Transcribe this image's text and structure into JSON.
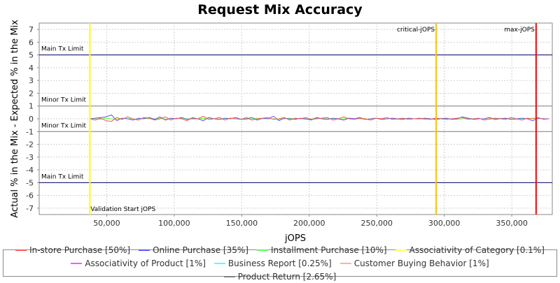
{
  "chart_data": {
    "type": "line",
    "title": "Request Mix Accuracy",
    "xlabel": "jOPS",
    "ylabel": "Actual % in the Mix - Expected % in the Mix",
    "xlim": [
      0,
      380000
    ],
    "ylim": [
      -7.5,
      7.5
    ],
    "x_ticks": [
      50000,
      100000,
      150000,
      200000,
      250000,
      300000,
      350000
    ],
    "x_tick_labels": [
      "50,000",
      "100,000",
      "150,000",
      "200,000",
      "250,000",
      "300,000",
      "350,000"
    ],
    "y_ticks": [
      -7,
      -6,
      -5,
      -4,
      -3,
      -2,
      -1,
      0,
      1,
      2,
      3,
      4,
      5,
      6,
      7
    ],
    "y_tick_labels": [
      "-7",
      "-6",
      "-5",
      "-4",
      "-3",
      "-2",
      "-1",
      "0",
      "1",
      "2",
      "3",
      "4",
      "5",
      "6",
      "7"
    ],
    "grid": true,
    "legend_position": "bottom",
    "horizontal_markers": [
      {
        "label": "Main Tx Limit",
        "value": 5,
        "color": "#000066"
      },
      {
        "label": "Minor Tx Limit",
        "value": 1,
        "color": "#808080"
      },
      {
        "label": "Minor Tx Limit",
        "value": -1,
        "color": "#808080"
      },
      {
        "label": "Main Tx Limit",
        "value": -5,
        "color": "#000066"
      }
    ],
    "vertical_markers": [
      {
        "label": "Validation Start jOPS",
        "value": 37500,
        "color": "#ffff00"
      },
      {
        "label": "critical-jOPS",
        "value": 294000,
        "color": "#ffc000"
      },
      {
        "label": "max-jOPS",
        "value": 368000,
        "color": "#ff0000"
      }
    ],
    "x": [
      37500,
      41500,
      45500,
      49500,
      53500,
      57500,
      61500,
      65500,
      69500,
      73500,
      77500,
      81500,
      85500,
      89500,
      93500,
      97500,
      101500,
      105500,
      109500,
      113500,
      117500,
      121500,
      125500,
      129500,
      133500,
      137500,
      141500,
      145500,
      149500,
      153500,
      157500,
      161500,
      165500,
      169500,
      173500,
      177500,
      181500,
      185500,
      189500,
      193500,
      197500,
      201500,
      205500,
      209500,
      213500,
      217500,
      221500,
      225500,
      229500,
      233500,
      237500,
      241500,
      245500,
      249500,
      253500,
      257500,
      261500,
      265500,
      269500,
      273500,
      277500,
      281500,
      285500,
      289500,
      293500,
      297500,
      301500,
      305500,
      309500,
      313500,
      317500,
      321500,
      325500,
      329500,
      333500,
      337500,
      341500,
      345500,
      349500,
      353500,
      357500,
      361500,
      365500,
      369500,
      373500,
      377500
    ],
    "series": [
      {
        "name": "In-store Purchase [50%]",
        "color": "#ff5555",
        "values": [
          0.0,
          -0.1,
          0.05,
          -0.15,
          -0.2,
          0.1,
          -0.05,
          0.15,
          0.0,
          -0.1,
          0.1,
          0.05,
          -0.1,
          0.0,
          0.15,
          -0.1,
          0.05,
          0.0,
          -0.15,
          0.1,
          0.0,
          0.2,
          -0.05,
          0.0,
          0.1,
          -0.1,
          0.05,
          0.0,
          -0.05,
          0.1,
          -0.1,
          0.0,
          0.05,
          0.1,
          -0.05,
          0.0,
          0.1,
          -0.1,
          0.05,
          0.0,
          0.1,
          -0.05,
          0.0,
          0.05,
          0.1,
          -0.1,
          0.0,
          0.15,
          0.0,
          -0.05,
          0.05,
          0.0,
          -0.1,
          0.05,
          0.0,
          0.1,
          -0.05,
          0.0,
          0.05,
          -0.05,
          0.0,
          0.05,
          0.0,
          -0.05,
          0.05,
          0.0,
          -0.05,
          0.0,
          0.05,
          0.1,
          -0.05,
          0.0,
          0.05,
          -0.1,
          0.0,
          0.05,
          0.0,
          -0.05,
          0.1,
          0.0,
          -0.1,
          0.05,
          0.0,
          0.1,
          -0.05,
          0.0
        ]
      },
      {
        "name": "Online Purchase [35%]",
        "color": "#5555ff",
        "values": [
          0.0,
          0.05,
          0.1,
          0.15,
          0.3,
          -0.15,
          0.05,
          0.0,
          -0.1,
          0.05,
          0.0,
          0.1,
          -0.05,
          0.15,
          -0.1,
          0.05,
          0.0,
          0.1,
          -0.05,
          0.05,
          0.0,
          -0.15,
          0.1,
          0.0,
          -0.05,
          0.05,
          0.0,
          0.1,
          -0.05,
          0.0,
          0.1,
          -0.1,
          0.05,
          0.0,
          0.2,
          -0.15,
          0.05,
          0.0,
          -0.05,
          0.05,
          0.0,
          -0.1,
          0.1,
          0.0,
          -0.05,
          0.05,
          0.0,
          -0.1,
          0.05,
          0.0,
          0.1,
          -0.05,
          0.0,
          0.05,
          -0.05,
          0.0,
          0.05,
          0.0,
          -0.05,
          0.05,
          0.0,
          0.0,
          0.05,
          0.0,
          -0.05,
          0.0,
          0.05,
          -0.05,
          0.0,
          0.15,
          0.05,
          -0.05,
          0.0,
          0.0,
          0.1,
          -0.05,
          0.0,
          0.05,
          -0.05,
          0.0,
          0.05,
          0.0,
          -0.15,
          0.05,
          0.0,
          0.0
        ]
      },
      {
        "name": "Installment Purchase [10%]",
        "color": "#55ff55",
        "values": [
          0.0,
          0.0,
          -0.05,
          0.05,
          0.0,
          -0.05,
          0.05,
          0.0,
          0.0,
          -0.05,
          0.05,
          0.0,
          0.0,
          0.05,
          -0.05,
          0.0,
          0.0,
          0.05,
          0.0,
          -0.05,
          0.0,
          0.05,
          0.0,
          0.0,
          -0.05,
          0.0,
          0.05,
          0.0,
          0.0,
          -0.05,
          0.0,
          0.05,
          0.0,
          0.0,
          0.0,
          -0.05,
          0.0,
          0.05,
          0.0,
          0.0,
          -0.05,
          0.0,
          0.05,
          0.0,
          0.0,
          0.0,
          -0.05,
          0.0,
          0.05,
          0.0,
          0.0,
          -0.05,
          0.0,
          0.05,
          0.0,
          0.0,
          0.0,
          -0.05,
          0.0,
          0.05,
          0.0,
          0.0,
          -0.05,
          0.0,
          0.0,
          0.05,
          0.0,
          0.0,
          -0.05,
          0.0,
          0.05,
          0.0,
          0.0,
          0.0,
          -0.05,
          0.0,
          0.05,
          0.0,
          0.0,
          -0.05,
          0.0,
          0.0,
          0.05,
          0.0,
          0.0,
          0.0
        ]
      },
      {
        "name": "Associativity of Category [0.1%]",
        "color": "#ffff55",
        "values": [
          0.0,
          0.0,
          0.0,
          0.0,
          0.0,
          0.0,
          0.0,
          0.0,
          0.0,
          0.0,
          0.0,
          0.0,
          0.0,
          0.0,
          0.0,
          0.0,
          0.0,
          0.0,
          0.0,
          0.0,
          0.0,
          0.0,
          0.0,
          0.0,
          0.0,
          0.0,
          0.0,
          0.0,
          0.0,
          0.0,
          0.0,
          0.0,
          0.0,
          0.0,
          0.0,
          0.0,
          0.0,
          0.0,
          0.0,
          0.0,
          0.0,
          0.0,
          0.0,
          0.0,
          0.0,
          0.0,
          0.0,
          0.0,
          0.0,
          0.0,
          0.0,
          0.0,
          0.0,
          0.0,
          0.0,
          0.0,
          0.0,
          0.0,
          0.0,
          0.0,
          0.0,
          0.0,
          0.0,
          0.0,
          0.0,
          0.0,
          0.0,
          0.0,
          0.0,
          0.0,
          0.0,
          0.0,
          0.0,
          0.0,
          0.0,
          0.0,
          0.0,
          0.0,
          0.0,
          0.0,
          0.0,
          0.0,
          0.0,
          0.0,
          0.0,
          0.0
        ]
      },
      {
        "name": "Associativity of Product [1%]",
        "color": "#ff55ff",
        "values": [
          0.0,
          0.0,
          0.0,
          0.0,
          0.0,
          0.0,
          0.0,
          0.0,
          0.0,
          0.0,
          0.0,
          0.0,
          0.0,
          0.0,
          0.0,
          0.0,
          0.0,
          0.0,
          0.0,
          0.0,
          0.0,
          0.0,
          0.0,
          0.0,
          0.0,
          0.0,
          0.0,
          0.0,
          0.0,
          0.0,
          0.0,
          0.0,
          0.0,
          0.0,
          0.0,
          0.0,
          0.0,
          0.0,
          0.0,
          0.0,
          0.0,
          0.0,
          0.0,
          0.0,
          0.0,
          0.0,
          0.0,
          0.0,
          0.0,
          0.0,
          0.0,
          0.0,
          0.0,
          0.0,
          0.0,
          0.0,
          0.0,
          0.0,
          0.0,
          0.0,
          0.0,
          0.0,
          0.0,
          0.0,
          0.0,
          0.0,
          0.0,
          0.0,
          0.0,
          0.0,
          0.0,
          0.0,
          0.0,
          0.0,
          0.0,
          0.0,
          0.0,
          0.0,
          0.0,
          0.0,
          0.0,
          0.0,
          0.0,
          0.0,
          0.0,
          0.0
        ]
      },
      {
        "name": "Business Report [0.25%]",
        "color": "#55ffff",
        "values": [
          0.0,
          0.0,
          0.0,
          0.0,
          0.0,
          0.0,
          0.0,
          0.0,
          0.0,
          0.0,
          0.0,
          0.0,
          0.0,
          0.0,
          0.0,
          0.0,
          0.0,
          0.0,
          0.0,
          0.0,
          0.0,
          0.0,
          0.0,
          0.0,
          0.0,
          0.0,
          0.0,
          0.0,
          0.0,
          0.0,
          0.0,
          0.0,
          0.0,
          0.0,
          0.0,
          0.0,
          0.0,
          0.0,
          0.0,
          0.0,
          0.0,
          0.0,
          0.0,
          0.0,
          0.0,
          0.0,
          0.0,
          0.0,
          0.0,
          0.0,
          0.0,
          0.0,
          0.0,
          0.0,
          0.0,
          0.0,
          0.0,
          0.0,
          0.0,
          0.0,
          0.0,
          0.0,
          0.0,
          0.0,
          0.0,
          0.0,
          0.0,
          0.0,
          0.0,
          0.0,
          0.0,
          0.0,
          0.0,
          0.0,
          0.0,
          0.0,
          0.0,
          0.0,
          0.0,
          0.0,
          0.0,
          0.0,
          0.0,
          0.0,
          0.0,
          0.0
        ]
      },
      {
        "name": "Customer Buying Behavior [1%]",
        "color": "#ffafaf",
        "values": [
          0.0,
          0.0,
          0.0,
          0.0,
          0.0,
          0.0,
          0.0,
          0.0,
          0.0,
          0.0,
          0.0,
          0.0,
          0.0,
          0.0,
          0.0,
          0.0,
          0.0,
          0.0,
          0.0,
          0.0,
          0.0,
          0.0,
          0.0,
          0.0,
          0.0,
          0.0,
          0.0,
          0.0,
          0.0,
          0.0,
          0.0,
          0.0,
          0.0,
          0.0,
          0.0,
          0.0,
          0.0,
          0.0,
          0.0,
          0.0,
          0.0,
          0.0,
          0.0,
          0.0,
          0.0,
          0.0,
          0.0,
          0.0,
          0.0,
          0.0,
          0.0,
          0.0,
          0.0,
          0.0,
          0.0,
          0.0,
          0.0,
          0.0,
          0.0,
          0.0,
          0.0,
          0.0,
          0.0,
          0.0,
          0.0,
          0.0,
          0.0,
          0.0,
          0.0,
          0.0,
          0.0,
          0.0,
          0.0,
          0.0,
          0.0,
          0.0,
          0.0,
          0.0,
          0.0,
          0.0,
          0.0,
          0.0,
          0.0,
          0.0,
          0.0,
          0.0
        ]
      },
      {
        "name": "Product Return [2.65%]",
        "color": "#808080",
        "values": [
          0.0,
          0.0,
          0.0,
          0.0,
          0.0,
          0.0,
          0.0,
          0.0,
          0.0,
          0.0,
          0.0,
          0.0,
          0.0,
          0.0,
          0.0,
          0.0,
          0.0,
          0.0,
          0.0,
          0.0,
          0.0,
          0.0,
          0.0,
          0.0,
          0.0,
          0.0,
          0.0,
          0.0,
          0.0,
          0.0,
          0.0,
          0.0,
          0.0,
          0.0,
          0.0,
          0.0,
          0.0,
          0.0,
          0.0,
          0.0,
          0.0,
          0.0,
          0.0,
          0.0,
          0.0,
          0.0,
          0.0,
          0.0,
          0.0,
          0.0,
          0.0,
          0.0,
          0.0,
          0.0,
          0.0,
          0.0,
          0.0,
          0.0,
          0.0,
          0.0,
          0.0,
          0.0,
          0.0,
          0.0,
          0.0,
          0.0,
          0.0,
          0.0,
          0.0,
          0.0,
          0.0,
          0.0,
          0.0,
          0.0,
          0.0,
          0.0,
          0.0,
          0.0,
          0.0,
          0.0,
          0.0,
          0.0,
          0.0,
          0.0,
          0.0,
          0.0
        ]
      }
    ]
  }
}
